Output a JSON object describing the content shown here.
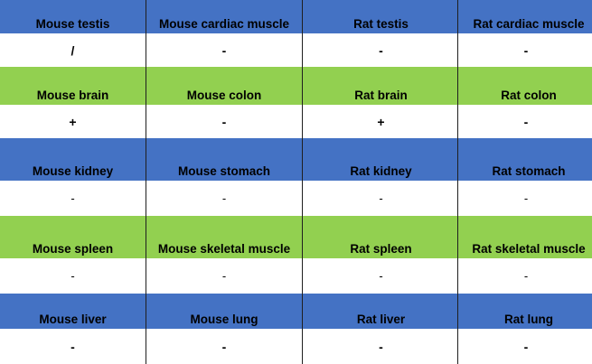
{
  "rows": [
    {
      "color": "blue",
      "headers": [
        "Mouse testis",
        "Mouse cardiac muscle",
        "Rat testis",
        "Rat cardiac muscle"
      ],
      "values": [
        "/",
        "-",
        "-",
        "-"
      ]
    },
    {
      "color": "green",
      "headers": [
        "Mouse brain",
        "Mouse colon",
        "Rat brain",
        "Rat colon"
      ],
      "values": [
        "+",
        "-",
        "+",
        "-"
      ]
    },
    {
      "color": "blue",
      "headers": [
        "Mouse kidney",
        "Mouse stomach",
        "Rat kidney",
        "Rat stomach"
      ],
      "values": [
        "-",
        "-",
        "-",
        "-"
      ]
    },
    {
      "color": "green",
      "headers": [
        "Mouse spleen",
        "Mouse skeletal muscle",
        "Rat spleen",
        "Rat skeletal muscle"
      ],
      "values": [
        "-",
        "-",
        "-",
        "-"
      ]
    },
    {
      "color": "blue",
      "headers": [
        "Mouse liver",
        "Mouse lung",
        "Rat liver",
        "Rat lung"
      ],
      "values": [
        "-",
        "-",
        "-",
        "-"
      ]
    }
  ],
  "colors": {
    "blue": "#4472c4",
    "green": "#92d050",
    "background": "#ffffff"
  }
}
